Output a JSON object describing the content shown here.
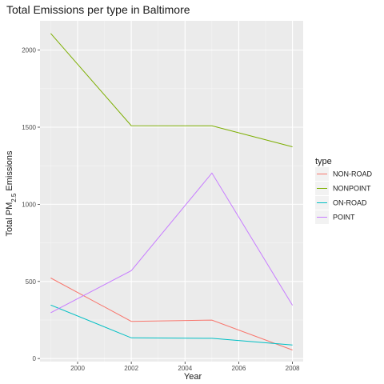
{
  "chart_data": {
    "type": "line",
    "title": "Total Emissions per type in Baltimore",
    "xlabel": "Year",
    "ylabel": {
      "prefix": "Total PM",
      "subscript": "2.5",
      "suffix": " Emissions"
    },
    "x": [
      1999,
      2002,
      2005,
      2008
    ],
    "xlim": [
      1998.6,
      2008.4
    ],
    "ylim": [
      -20,
      2190
    ],
    "x_ticks": [
      2000,
      2002,
      2004,
      2006,
      2008
    ],
    "y_ticks": [
      0,
      500,
      1000,
      1500,
      2000
    ],
    "x_tick_labels": [
      "2000",
      "2002",
      "2004",
      "2006",
      "2008"
    ],
    "y_tick_labels": [
      "0",
      "500",
      "1000",
      "1500",
      "2000"
    ],
    "grid": true,
    "legend": {
      "title": "type",
      "position": "right"
    },
    "series": [
      {
        "name": "NON-ROAD",
        "color": "#F8766D",
        "values": [
          522,
          241,
          249,
          55
        ]
      },
      {
        "name": "NONPOINT",
        "color": "#7CAE00",
        "values": [
          2108,
          1510,
          1509,
          1373
        ]
      },
      {
        "name": "ON-ROAD",
        "color": "#00BFC4",
        "values": [
          347,
          134,
          131,
          88
        ]
      },
      {
        "name": "POINT",
        "color": "#C77CFF",
        "values": [
          297,
          570,
          1203,
          345
        ]
      }
    ]
  }
}
